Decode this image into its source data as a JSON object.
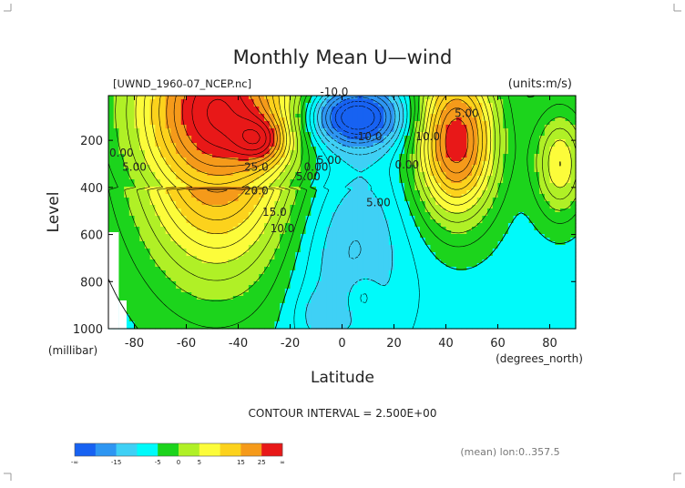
{
  "chart_data": {
    "type": "heatmap",
    "title": "Monthly Mean U—wind",
    "subtitle_left": "[UWND_1960-07_NCEP.nc]",
    "subtitle_right": "(units:m/s)",
    "xlabel": "Latitude",
    "ylabel": "Level",
    "x_unit_label": "(degrees_north)",
    "y_unit_label": "(millibar)",
    "xlim": [
      -90,
      90
    ],
    "ylim": [
      1000,
      10
    ],
    "x_ticks": [
      -80,
      -60,
      -40,
      -20,
      0,
      20,
      40,
      60,
      80
    ],
    "x_tick_labels": [
      "-80",
      "-60",
      "-40",
      "-20",
      "0",
      "20",
      "40",
      "60",
      "80"
    ],
    "y_ticks": [
      200,
      400,
      600,
      800,
      1000
    ],
    "y_tick_labels": [
      "200",
      "400",
      "600",
      "800",
      "1000"
    ],
    "contour_interval_text": "CONTOUR INTERVAL = 2.500E+00",
    "footer_note": "(mean) lon:0..357.5",
    "contour_labels": [
      {
        "text": "-10.0",
        "lat": -3,
        "lev": 10
      },
      {
        "text": "-10.0",
        "lat": 10,
        "lev": 200
      },
      {
        "text": "0.00",
        "lat": -85,
        "lev": 270
      },
      {
        "text": "5.00",
        "lat": -80,
        "lev": 330
      },
      {
        "text": "25.0",
        "lat": -33,
        "lev": 330
      },
      {
        "text": "20.0",
        "lat": -33,
        "lev": 430
      },
      {
        "text": "15.0",
        "lat": -26,
        "lev": 520
      },
      {
        "text": "10.0",
        "lat": -23,
        "lev": 590
      },
      {
        "text": "5.00",
        "lat": -13,
        "lev": 370
      },
      {
        "text": "0.00",
        "lat": -10,
        "lev": 330
      },
      {
        "text": "5.00",
        "lat": -5,
        "lev": 300
      },
      {
        "text": "5.00",
        "lat": 14,
        "lev": 480
      },
      {
        "text": "0.00",
        "lat": 25,
        "lev": 320
      },
      {
        "text": "10.0",
        "lat": 33,
        "lev": 200
      },
      {
        "text": "5.00",
        "lat": 48,
        "lev": 100
      }
    ],
    "color_levels": [
      -20,
      -15,
      -10,
      -5,
      0,
      5,
      10,
      15,
      20,
      25,
      30
    ],
    "colorbar": {
      "tick_labels": [
        "-∞",
        "-15",
        "-5",
        "0",
        "5",
        "15",
        "25",
        "∞"
      ],
      "colors": [
        "#1762f2",
        "#2e96f2",
        "#3fd0f5",
        "#00fafa",
        "#1cd41c",
        "#b0f026",
        "#fcfc3a",
        "#fcd21c",
        "#f59a1a",
        "#e81818"
      ]
    },
    "field_model": {
      "description_units": "m/s",
      "features": [
        {
          "name": "southern-jet",
          "lat": -48,
          "lev": 80,
          "amp": 32
        },
        {
          "name": "southern-jet-core",
          "lat": -31,
          "lev": 200,
          "amp": 12
        },
        {
          "name": "northern-jet",
          "lat": 44,
          "lev": 200,
          "amp": 29
        },
        {
          "name": "arctic-max",
          "lat": 84,
          "lev": 300,
          "amp": 14
        },
        {
          "name": "tropical-easterly",
          "lat": 5,
          "lev": 100,
          "amp": -22
        }
      ]
    }
  }
}
